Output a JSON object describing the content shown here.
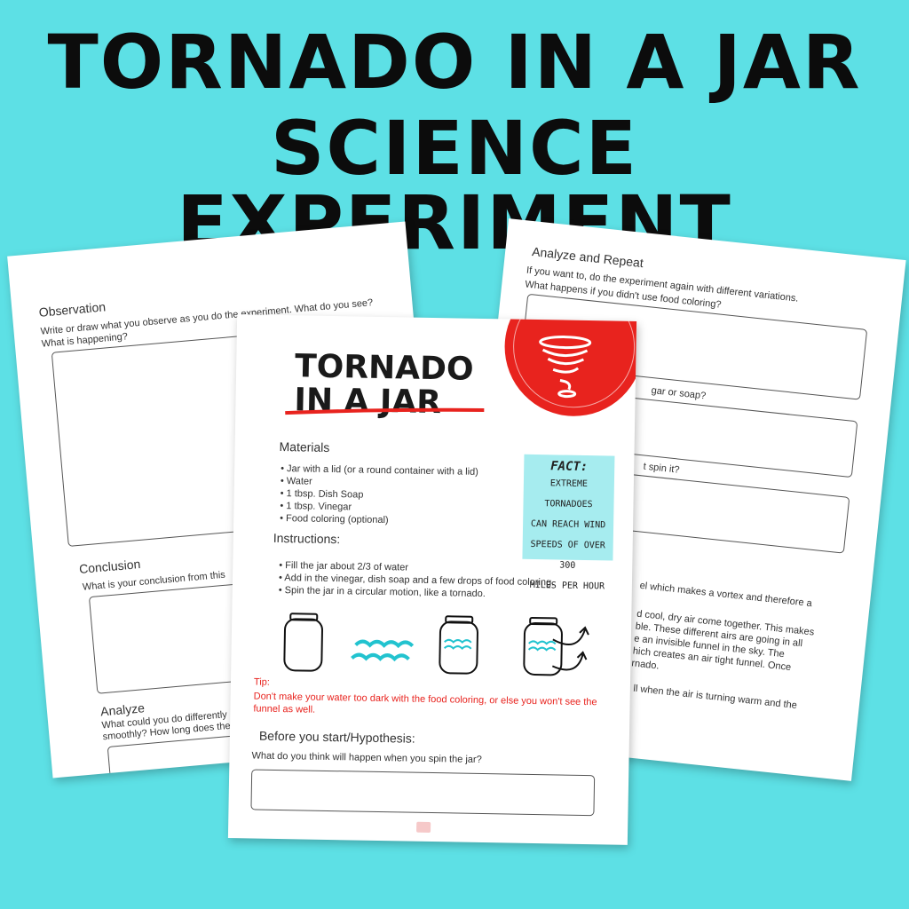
{
  "headline": {
    "line1": "TORNADO IN A JAR",
    "line2": "SCIENCE EXPERIMENT"
  },
  "left_page": {
    "observation_title": "Observation",
    "observation_prompt_1": "Write or draw what you observe as you do the experiment. What do you see?",
    "observation_prompt_2": "What is happening?",
    "conclusion_title": "Conclusion",
    "conclusion_prompt": "What is your conclusion from this",
    "analyze_title": "Analyze",
    "analyze_prompt_1": "What could you do differently",
    "analyze_prompt_2": "smoothly? How long does the"
  },
  "right_page": {
    "title": "Analyze and Repeat",
    "intro": "If you want to, do the experiment again with different variations.",
    "q1": "What happens if you didn't use food coloring?",
    "q2_fragment": "gar or soap?",
    "q3_fragment": "t spin it?",
    "explain": [
      "el which makes a vortex and therefore a",
      "d cool, dry air come together. This makes",
      "ble. These different airs are going in all",
      "e an invisible funnel in the sky. The",
      "hich creates an air tight funnel. Once",
      "rnado."
    ],
    "explain2": "ll when the air is turning warm and the"
  },
  "front_page": {
    "title_1": "TORNADO",
    "title_2": "IN A JAR",
    "materials_title": "Materials",
    "materials": [
      "Jar with a lid (or a round container with a lid)",
      "Water",
      "1 tbsp. Dish Soap",
      "1 tbsp. Vinegar",
      "Food coloring (optional)"
    ],
    "instructions_title": "Instructions:",
    "instructions": [
      "Fill the jar about 2/3 of water",
      "Add in the vinegar, dish soap and a few drops of food coloring.",
      "Spin the jar in a circular motion, like a tornado."
    ],
    "fact": {
      "title": "FACT:",
      "lines": [
        "EXTREME TORNADOES",
        "CAN REACH WIND",
        "SPEEDS OF OVER 300",
        "MILES PER HOUR"
      ]
    },
    "tip_label": "Tip:",
    "tip_1": "Don't make your water too dark with the food coloring, or else you won't see the",
    "tip_2": "funnel as well.",
    "hypothesis_title": "Before you start/Hypothesis:",
    "hypothesis_prompt": "What do you think will happen when you spin the jar?"
  },
  "colors": {
    "background": "#5de0e5",
    "accent_red": "#e8231e",
    "water": "#22c3cf",
    "fact_box": "#a6ecef"
  }
}
